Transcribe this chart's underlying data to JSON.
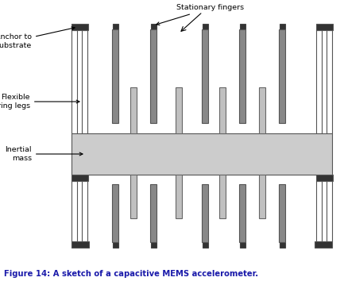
{
  "fig_width": 4.33,
  "fig_height": 3.59,
  "dpi": 100,
  "bg_color": "#ffffff",
  "dark_gray": "#555555",
  "finger_dark": "#666666",
  "light_gray": "#cccccc",
  "anchor_color": "#333333",
  "caption": "Figure 14: A sketch of a capacitive MEMS accelerometer.",
  "caption_color": "#1a1aaa",
  "caption_fontsize": 7.2,
  "label_fontsize": 6.8,
  "stationary_fingers_label": "Stationary fingers",
  "anchor_label": "Anchor to\nsubstrate",
  "spring_label": "Flexible\nspring legs",
  "inertial_label": "Inertial\nmass"
}
